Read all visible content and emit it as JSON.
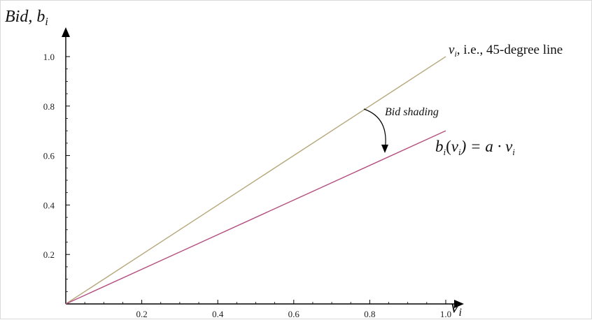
{
  "chart_data": {
    "type": "line",
    "title": "",
    "x": [
      0,
      1.0
    ],
    "xlim": [
      0,
      1.0
    ],
    "ylim": [
      0,
      1.0
    ],
    "xticks": [
      "0.2",
      "0.4",
      "0.6",
      "0.8",
      "1.0"
    ],
    "yticks": [
      "0.2",
      "0.4",
      "0.6",
      "0.8",
      "1.0"
    ],
    "ylabel_main": "Bid, b",
    "ylabel_sub": "i",
    "xlabel_main": "v",
    "xlabel_sub": "i",
    "grid": false,
    "series": [
      {
        "values": [
          0,
          1.0
        ],
        "color": "#b5a77a"
      },
      {
        "values": [
          0,
          0.7
        ],
        "color": "#b34f7f"
      }
    ],
    "annotations": {
      "line1_var": "v",
      "line1_sub": "i",
      "line1_rest": ", i.e., 45-degree line",
      "shading_label": "Bid shading",
      "line2_b": "b",
      "line2_sub1": "i",
      "line2_v": "v",
      "line2_sub2": "i",
      "line2_eq": ") = a · v",
      "line2_sub3": "i"
    }
  }
}
